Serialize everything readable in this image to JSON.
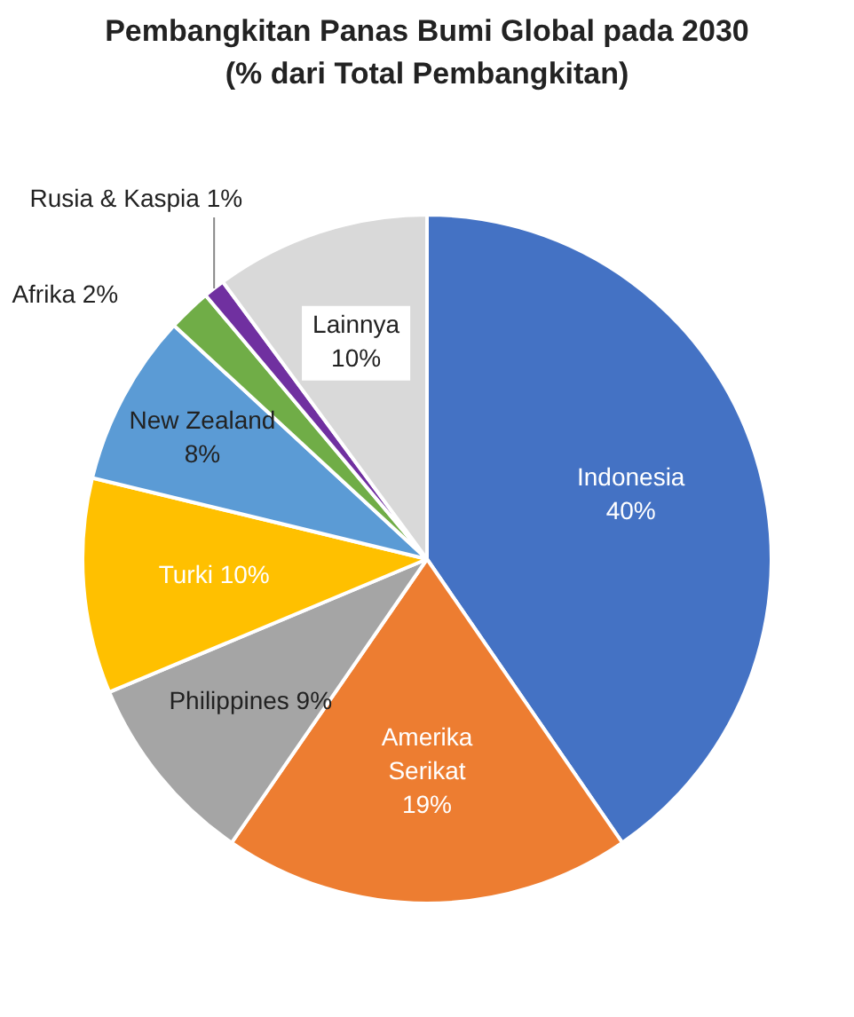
{
  "chart_data": {
    "type": "pie",
    "title": "Pembangkitan Panas Bumi Global pada 2030\n(% dari Total Pembangkitan)",
    "categories": [
      "Indonesia",
      "Amerika Serikat",
      "Philippines",
      "Turki",
      "New Zealand",
      "Afrika",
      "Rusia & Kaspia",
      "Lainnya"
    ],
    "values": [
      40,
      19,
      9,
      10,
      8,
      2,
      1,
      10
    ],
    "value_labels": [
      "40%",
      "19%",
      "9%",
      "10%",
      "8%",
      "2%",
      "1%",
      "10%"
    ],
    "colors": [
      "#4472c4",
      "#ed7d31",
      "#a5a5a5",
      "#ffc000",
      "#5b9bd5",
      "#70ad47",
      "#7030a0",
      "#d9d9d9"
    ],
    "data_labels": true,
    "legend": false
  }
}
